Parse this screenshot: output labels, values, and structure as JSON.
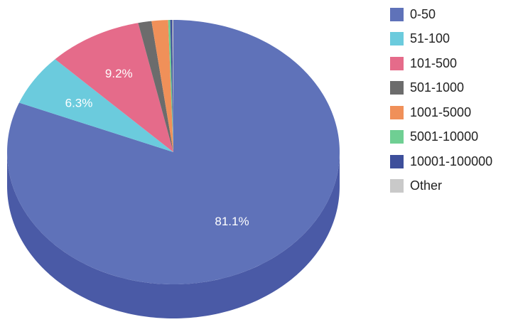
{
  "chart_data": {
    "type": "pie",
    "three_d": true,
    "start_angle": "top (12 o'clock), clockwise",
    "slices": [
      {
        "label": "0-50",
        "value": 81.1,
        "value_label": "81.1%",
        "color": "#5f72b9",
        "side_color": "#4a5aa6"
      },
      {
        "label": "51-100",
        "value": 6.3,
        "value_label": "6.3%",
        "color": "#6bcbdd",
        "side_color": "#4ea8bc"
      },
      {
        "label": "101-500",
        "value": 9.2,
        "value_label": "9.2%",
        "color": "#e56b8a",
        "side_color": "#c6536f"
      },
      {
        "label": "501-1000",
        "value": 1.3,
        "value_label": "",
        "color": "#6c6c6c",
        "side_color": "#555555"
      },
      {
        "label": "1001-5000",
        "value": 1.6,
        "value_label": "",
        "color": "#f09059",
        "side_color": "#d07541"
      },
      {
        "label": "5001-10000",
        "value": 0.2,
        "value_label": "",
        "color": "#6fcf93",
        "side_color": "#55b078"
      },
      {
        "label": "10001-100000",
        "value": 0.2,
        "value_label": "",
        "color": "#3e4f9b",
        "side_color": "#32407f"
      },
      {
        "label": "Other",
        "value": 0.1,
        "value_label": "",
        "color": "#c9c9c9",
        "side_color": "#a9a9a9"
      }
    ],
    "legend_position": "right"
  }
}
